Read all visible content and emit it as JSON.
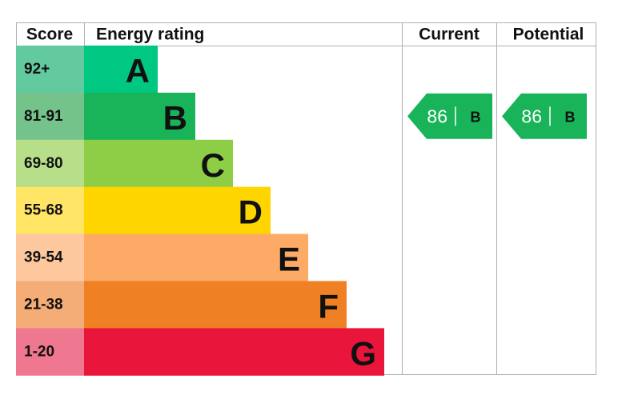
{
  "header": {
    "score": "Score",
    "rating": "Energy rating",
    "current": "Current",
    "potential": "Potential"
  },
  "bands": [
    {
      "score": "92+",
      "letter": "A",
      "color": "#00c781",
      "score_color": "#63caa0"
    },
    {
      "score": "81-91",
      "letter": "B",
      "color": "#19b459",
      "score_color": "#73c38b"
    },
    {
      "score": "69-80",
      "letter": "C",
      "color": "#8dce46",
      "score_color": "#b7df8a"
    },
    {
      "score": "55-68",
      "letter": "D",
      "color": "#ffd500",
      "score_color": "#ffe466"
    },
    {
      "score": "39-54",
      "letter": "E",
      "color": "#fcaa65",
      "score_color": "#fdc89e"
    },
    {
      "score": "21-38",
      "letter": "F",
      "color": "#ef8023",
      "score_color": "#f5ad77"
    },
    {
      "score": "1-20",
      "letter": "G",
      "color": "#e9153b",
      "score_color": "#f07790"
    }
  ],
  "current": {
    "score": 86,
    "rating": "B"
  },
  "potential": {
    "score": 86,
    "rating": "B"
  }
}
